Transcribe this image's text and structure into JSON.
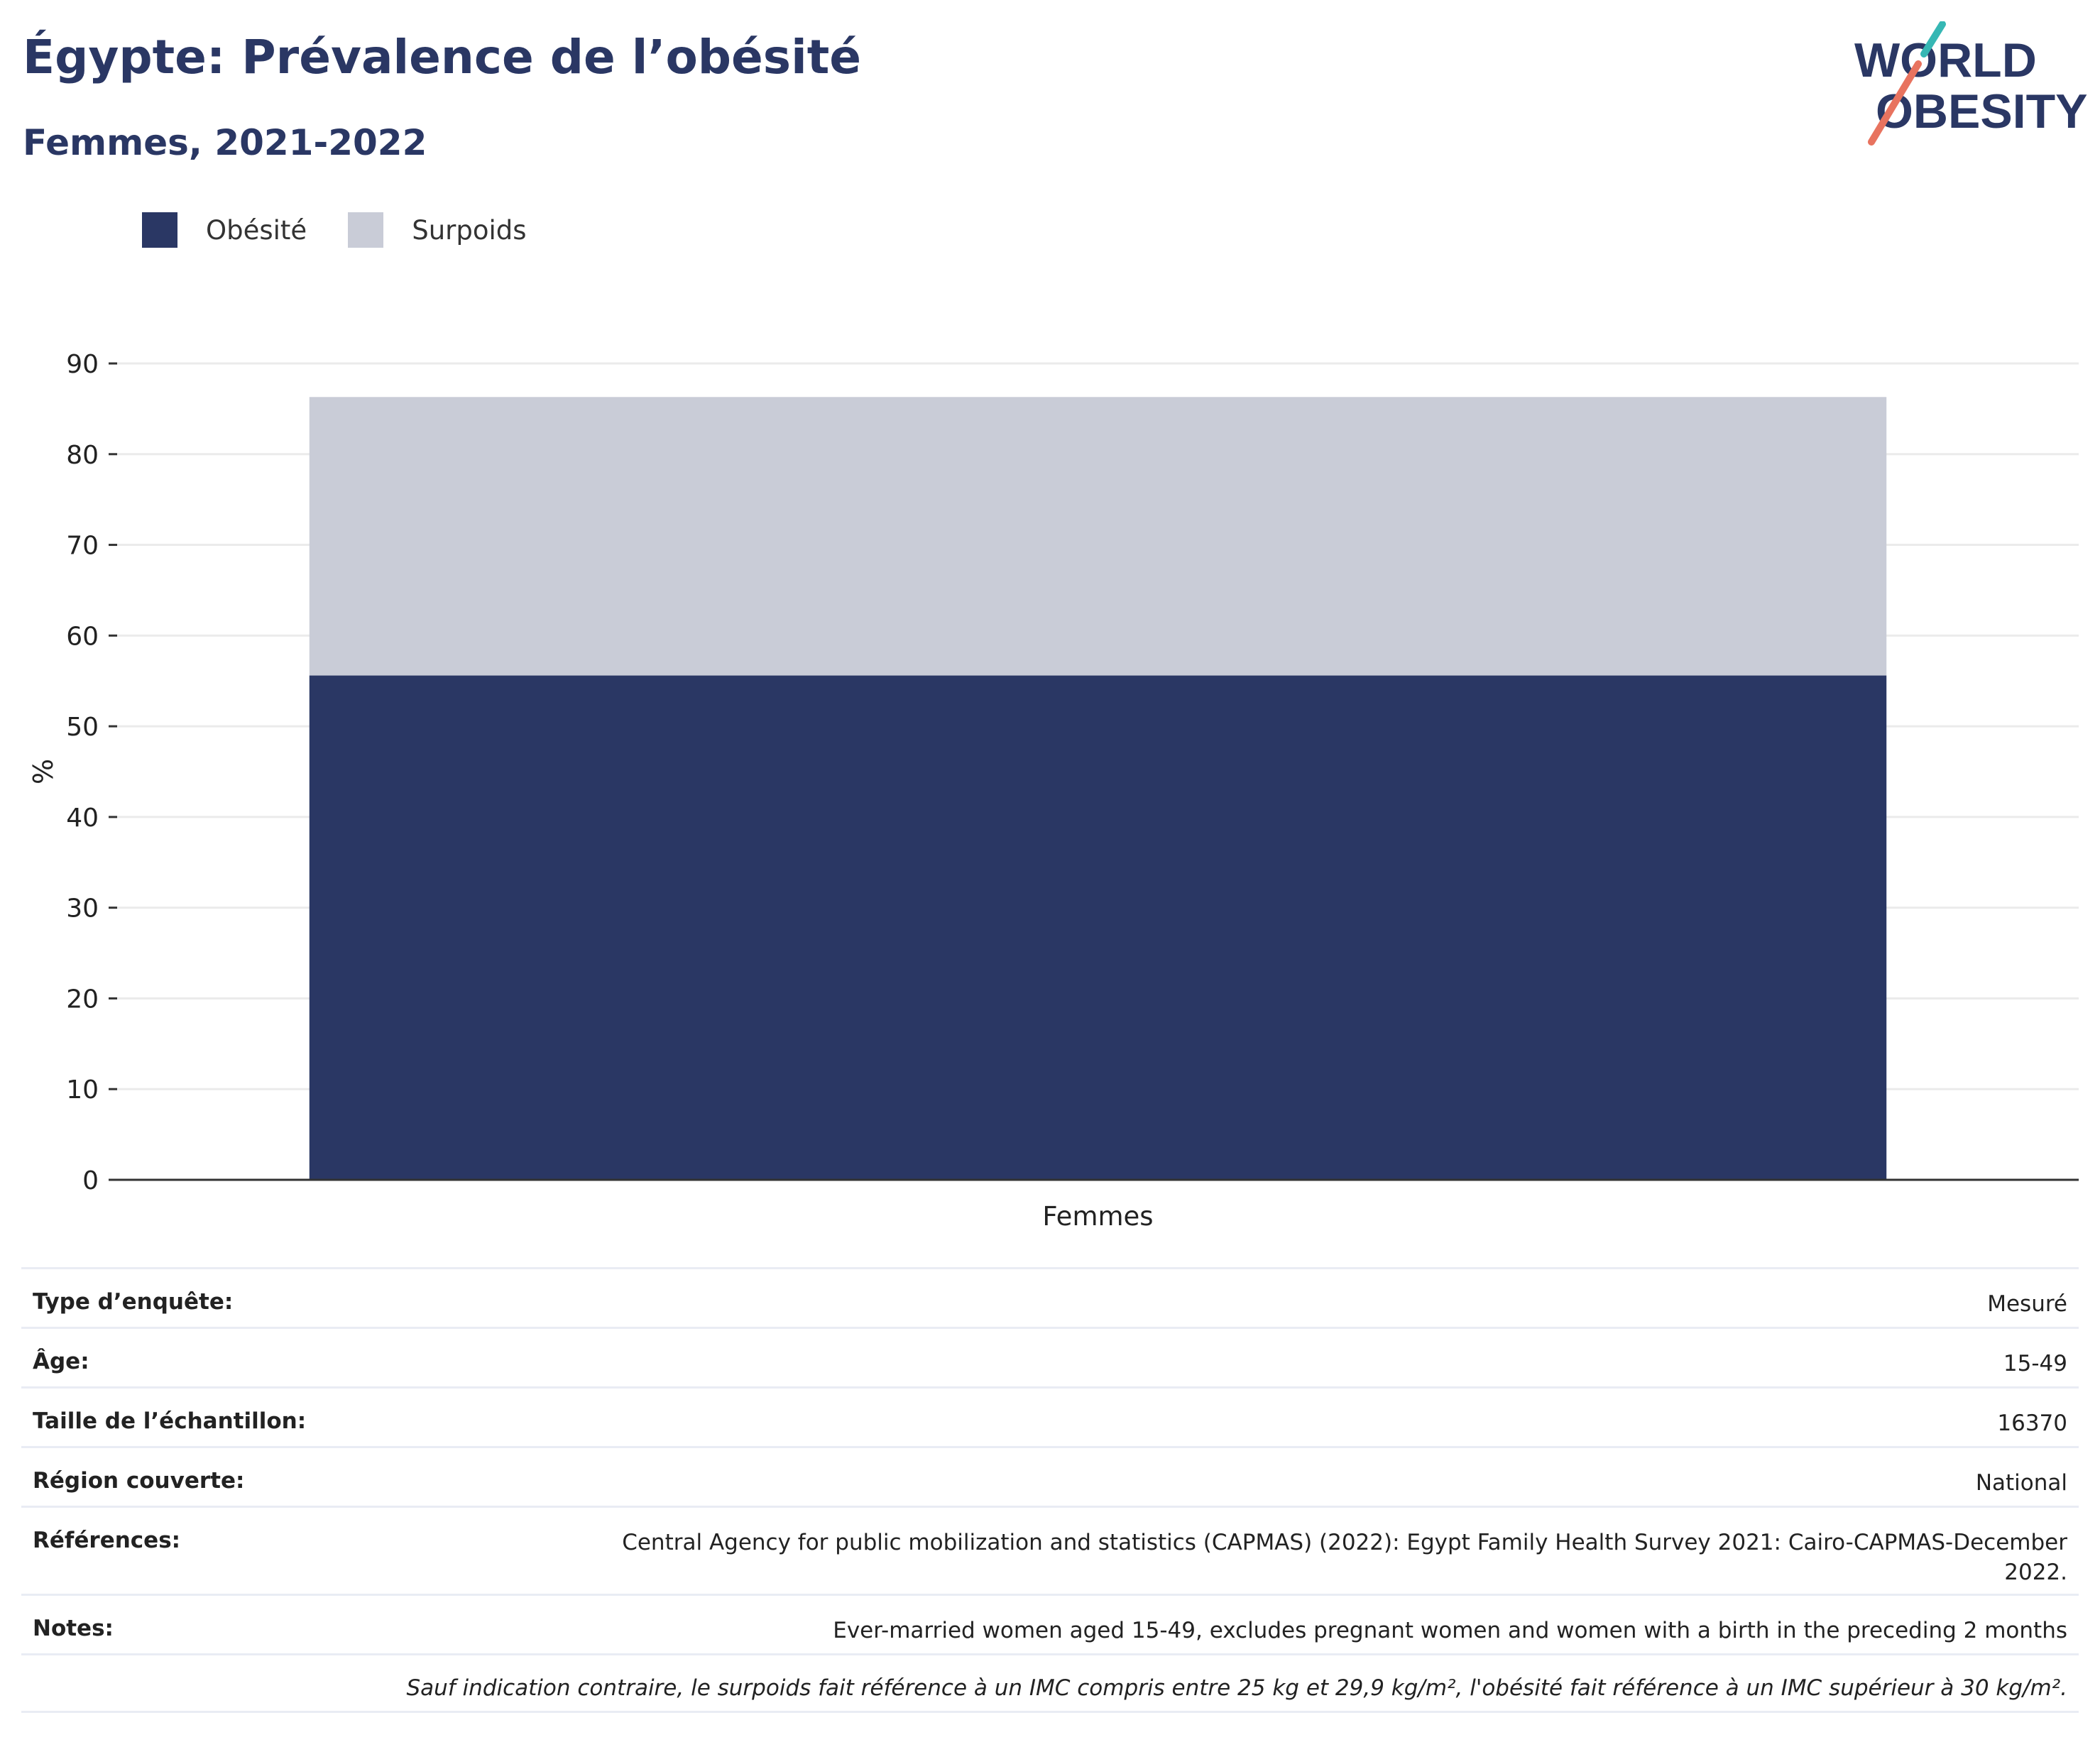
{
  "header": {
    "title": "Égypte: Prévalence de l’obésité",
    "subtitle": "Femmes, 2021-2022",
    "logo_line1": "WORLD",
    "logo_line2": "OBESITY"
  },
  "colors": {
    "obesity": "#2a3764",
    "overweight": "#c9ccd7",
    "title": "#2a3764",
    "logo_teal": "#36b7b4",
    "logo_coral": "#e8735f"
  },
  "legend": [
    {
      "label": "Obésité",
      "color": "#2a3764"
    },
    {
      "label": "Surpoids",
      "color": "#c9ccd7"
    }
  ],
  "chart_data": {
    "type": "bar",
    "stacked": true,
    "categories": [
      "Femmes"
    ],
    "series": [
      {
        "name": "Obésité",
        "values": [
          55.6
        ],
        "color": "#2a3764"
      },
      {
        "name": "Surpoids",
        "values": [
          30.7
        ],
        "color": "#c9ccd7"
      }
    ],
    "ylabel": "%",
    "ylim": [
      0,
      90
    ],
    "yticks": [
      0,
      10,
      20,
      30,
      40,
      50,
      60,
      70,
      80,
      90
    ],
    "grid": true,
    "legend_position": "top-left"
  },
  "info": {
    "rows": [
      {
        "key": "Type d’enquête:",
        "value": "Mesuré"
      },
      {
        "key": "Âge:",
        "value": "15-49"
      },
      {
        "key": "Taille de l’échantillon:",
        "value": "16370"
      },
      {
        "key": "Région couverte:",
        "value": "National"
      },
      {
        "key": "Références:",
        "value": "Central Agency for public mobilization and statistics (CAPMAS) (2022): Egypt Family Health Survey 2021: Cairo-CAPMAS-December 2022."
      },
      {
        "key": "Notes:",
        "value": "Ever-married women aged 15-49, excludes pregnant women and women with a birth in the preceding 2 months"
      }
    ],
    "footnote": "Sauf indication contraire, le surpoids fait référence à un IMC compris entre 25 kg et 29,9 kg/m², l'obésité fait référence à un IMC supérieur à 30 kg/m²."
  }
}
